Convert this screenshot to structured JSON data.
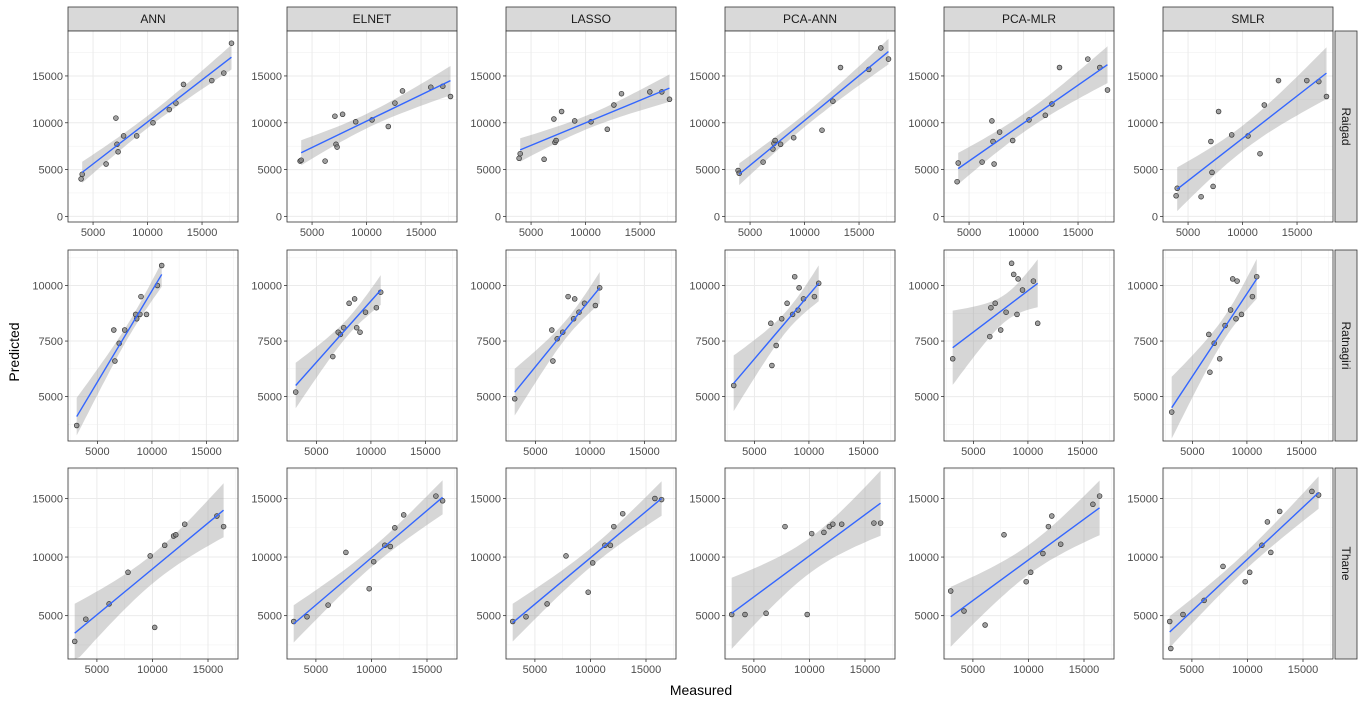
{
  "chart_data": {
    "type": "scatter",
    "title": "",
    "xlabel": "Measured",
    "ylabel": "Predicted",
    "models": [
      "ANN",
      "ELNET",
      "LASSO",
      "PCA-ANN",
      "PCA-MLR",
      "SMLR"
    ],
    "regions": [
      "Raigad",
      "Ratnagiri",
      "Thane"
    ],
    "grid": true,
    "colors": {
      "fit_line": "#3366ff",
      "ribbon": "#999999",
      "point_fill": "#808080",
      "point_stroke": "#333333",
      "strip_bg": "#d9d9d9"
    },
    "rows": [
      {
        "region": "Raigad",
        "xlim": [
          2700,
          18300
        ],
        "ylim": [
          -600,
          19800
        ],
        "xticks": [
          5000,
          10000,
          15000
        ],
        "yticks": [
          0,
          5000,
          10000,
          15000
        ],
        "panels": [
          {
            "model": "ANN",
            "x": [
              3900,
              4000,
              6200,
              7100,
              7200,
              7300,
              7800,
              9000,
              10500,
              12000,
              12600,
              13300,
              15900,
              17000,
              17700
            ],
            "y": [
              4000,
              4500,
              5600,
              10500,
              7700,
              6900,
              8600,
              8600,
              10000,
              11400,
              12100,
              14100,
              14500,
              15300,
              18500
            ],
            "fit": [
              [
                4000,
                4700
              ],
              [
                17700,
                17000
              ]
            ]
          },
          {
            "model": "ELNET",
            "x": [
              3900,
              4000,
              6200,
              7100,
              7200,
              7300,
              7800,
              9000,
              10500,
              12000,
              12600,
              13300,
              15900,
              17000,
              17700
            ],
            "y": [
              5900,
              6000,
              5900,
              10700,
              7700,
              7400,
              10900,
              10100,
              10300,
              9600,
              12100,
              13400,
              13800,
              13900,
              12800
            ],
            "fit": [
              [
                4000,
                6800
              ],
              [
                17700,
                14500
              ]
            ]
          },
          {
            "model": "LASSO",
            "x": [
              3900,
              4000,
              6200,
              7100,
              7200,
              7300,
              7800,
              9000,
              10500,
              12000,
              12600,
              13300,
              15900,
              17000,
              17700
            ],
            "y": [
              6200,
              6700,
              6100,
              10400,
              7900,
              8100,
              11200,
              10200,
              10100,
              9300,
              11900,
              13100,
              13300,
              13300,
              12500
            ],
            "fit": [
              [
                4000,
                7100
              ],
              [
                17700,
                13700
              ]
            ]
          },
          {
            "model": "PCA-ANN",
            "x": [
              3900,
              4000,
              6200,
              7100,
              7200,
              7300,
              7800,
              9000,
              11600,
              12600,
              13300,
              15900,
              17000,
              17700
            ],
            "y": [
              4900,
              4600,
              5800,
              7200,
              7800,
              8100,
              7700,
              8400,
              9200,
              12300,
              15900,
              15700,
              18000,
              16800
            ],
            "fit": [
              [
                4000,
                4500
              ],
              [
                17700,
                17600
              ]
            ]
          },
          {
            "model": "PCA-MLR",
            "x": [
              3900,
              4000,
              6200,
              7100,
              7200,
              7300,
              7800,
              9000,
              10500,
              12000,
              12600,
              13300,
              15900,
              17000,
              17700
            ],
            "y": [
              3700,
              5700,
              5800,
              10200,
              8000,
              5600,
              9000,
              8100,
              10300,
              10800,
              12000,
              15900,
              16800,
              15900,
              13500
            ],
            "fit": [
              [
                4000,
                5100
              ],
              [
                17700,
                16200
              ]
            ]
          },
          {
            "model": "SMLR",
            "x": [
              3900,
              4000,
              6200,
              7100,
              7200,
              7300,
              7800,
              9000,
              10500,
              11600,
              12000,
              13300,
              15900,
              17000,
              17700
            ],
            "y": [
              2200,
              3000,
              2100,
              8000,
              4700,
              3200,
              11200,
              8700,
              8600,
              6700,
              11900,
              14500,
              14500,
              14400,
              12800
            ],
            "fit": [
              [
                4000,
                2900
              ],
              [
                17700,
                15300
              ]
            ]
          }
        ]
      },
      {
        "region": "Ratnagiri",
        "xlim": [
          2300,
          17900
        ],
        "ylim": [
          3000,
          11600
        ],
        "xticks": [
          5000,
          10000,
          15000
        ],
        "yticks": [
          5000,
          7500,
          10000
        ],
        "panels": [
          {
            "model": "ANN",
            "x": [
              3100,
              6500,
              6600,
              7000,
              7500,
              8500,
              8600,
              8900,
              9000,
              9500,
              10500,
              10900
            ],
            "y": [
              3700,
              8000,
              6600,
              7400,
              8000,
              8700,
              8500,
              8700,
              9500,
              8700,
              10000,
              10900
            ],
            "fit": [
              [
                3100,
                4100
              ],
              [
                10900,
                10500
              ]
            ]
          },
          {
            "model": "ELNET",
            "x": [
              3100,
              6500,
              7000,
              7200,
              7500,
              8000,
              8500,
              8700,
              9000,
              9500,
              10500,
              10900
            ],
            "y": [
              5200,
              6800,
              7900,
              7800,
              8100,
              9200,
              9400,
              8100,
              7900,
              8800,
              9000,
              9700
            ],
            "fit": [
              [
                3100,
                5500
              ],
              [
                10900,
                9800
              ]
            ]
          },
          {
            "model": "LASSO",
            "x": [
              3100,
              6500,
              6600,
              7000,
              7500,
              8000,
              8500,
              8600,
              9000,
              9500,
              10500,
              10900
            ],
            "y": [
              4900,
              8000,
              6600,
              7600,
              7900,
              9500,
              8500,
              9400,
              8800,
              9200,
              9100,
              9900
            ],
            "fit": [
              [
                3100,
                5200
              ],
              [
                10900,
                9900
              ]
            ]
          },
          {
            "model": "PCA-ANN",
            "x": [
              3100,
              6500,
              6600,
              7000,
              7500,
              8000,
              8500,
              8700,
              9000,
              9100,
              9500,
              10500,
              10900
            ],
            "y": [
              5500,
              8300,
              6400,
              7300,
              8500,
              9200,
              8700,
              10400,
              8900,
              9900,
              9400,
              9500,
              10100
            ],
            "fit": [
              [
                3100,
                5600
              ],
              [
                10900,
                10100
              ]
            ]
          },
          {
            "model": "PCA-MLR",
            "x": [
              3100,
              6500,
              6600,
              7000,
              7500,
              8000,
              8500,
              8700,
              9000,
              9100,
              9500,
              10500,
              10900
            ],
            "y": [
              6700,
              7700,
              9000,
              9200,
              8000,
              8800,
              11000,
              10500,
              8700,
              10300,
              9800,
              10200,
              8300
            ],
            "fit": [
              [
                3100,
                7200
              ],
              [
                10900,
                10100
              ]
            ]
          },
          {
            "model": "SMLR",
            "x": [
              3100,
              6500,
              6600,
              7000,
              7500,
              8000,
              8500,
              8700,
              9000,
              9100,
              9500,
              10500,
              10900
            ],
            "y": [
              4300,
              7800,
              6100,
              7400,
              6700,
              8200,
              8900,
              10300,
              8500,
              10200,
              8700,
              9500,
              10400
            ],
            "fit": [
              [
                3100,
                4500
              ],
              [
                10900,
                10300
              ]
            ]
          }
        ]
      },
      {
        "region": "Thane",
        "xlim": [
          2400,
          17700
        ],
        "ylim": [
          1300,
          17600
        ],
        "xticks": [
          5000,
          10000,
          15000
        ],
        "yticks": [
          5000,
          10000,
          15000
        ],
        "panels": [
          {
            "model": "ANN",
            "x": [
              3000,
              4000,
              6100,
              7800,
              9800,
              10200,
              11100,
              11900,
              12100,
              12900,
              15800,
              16400
            ],
            "y": [
              2800,
              4700,
              6000,
              8700,
              10100,
              4000,
              11000,
              11800,
              11900,
              12800,
              13500,
              12600
            ],
            "fit": [
              [
                3000,
                3500
              ],
              [
                16400,
                14000
              ]
            ]
          },
          {
            "model": "ELNET",
            "x": [
              3000,
              4200,
              6100,
              7700,
              9800,
              10200,
              11200,
              11700,
              12100,
              12900,
              15800,
              16400
            ],
            "y": [
              4500,
              4900,
              5900,
              10400,
              7300,
              9600,
              11000,
              10900,
              12500,
              13600,
              15200,
              14800
            ],
            "fit": [
              [
                3000,
                4300
              ],
              [
                16400,
                15100
              ]
            ]
          },
          {
            "model": "LASSO",
            "x": [
              3000,
              4200,
              6100,
              7800,
              9800,
              10200,
              11300,
              11800,
              12100,
              12900,
              15800,
              16400
            ],
            "y": [
              4500,
              4900,
              6000,
              10100,
              7000,
              9500,
              11000,
              11000,
              12600,
              13700,
              15000,
              14900
            ],
            "fit": [
              [
                3000,
                4400
              ],
              [
                16400,
                15000
              ]
            ]
          },
          {
            "model": "PCA-ANN",
            "x": [
              3000,
              4200,
              6100,
              7800,
              9800,
              10200,
              11300,
              11800,
              12100,
              12900,
              15800,
              16400
            ],
            "y": [
              5100,
              5100,
              5200,
              12600,
              5100,
              12000,
              12100,
              12600,
              12800,
              12800,
              12900,
              12900
            ],
            "fit": [
              [
                3000,
                5200
              ],
              [
                16400,
                14600
              ]
            ]
          },
          {
            "model": "PCA-MLR",
            "x": [
              3000,
              4200,
              6100,
              7800,
              9800,
              10200,
              11300,
              11800,
              12100,
              12900,
              15800,
              16400
            ],
            "y": [
              7100,
              5400,
              4200,
              11900,
              7900,
              8700,
              10300,
              12600,
              13500,
              11100,
              14500,
              15200
            ],
            "fit": [
              [
                3000,
                4900
              ],
              [
                16400,
                14200
              ]
            ]
          },
          {
            "model": "SMLR",
            "x": [
              3000,
              3100,
              4200,
              6100,
              7800,
              9800,
              10200,
              11300,
              11800,
              12100,
              12900,
              15800,
              16400
            ],
            "y": [
              4500,
              2200,
              5100,
              6300,
              9200,
              7900,
              8700,
              11000,
              13000,
              10400,
              13900,
              15600,
              15300
            ],
            "fit": [
              [
                3000,
                3600
              ],
              [
                16400,
                15500
              ]
            ]
          }
        ]
      }
    ]
  }
}
